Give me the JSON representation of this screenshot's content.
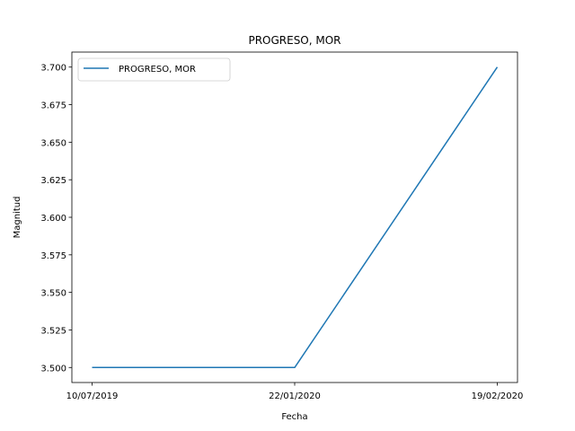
{
  "chart_data": {
    "type": "line",
    "title": "PROGRESO, MOR",
    "xlabel": "Fecha",
    "ylabel": "Magnitud",
    "x": [
      "10/07/2019",
      "22/01/2020",
      "19/02/2020"
    ],
    "series": [
      {
        "name": "PROGRESO, MOR",
        "values": [
          3.5,
          3.5,
          3.7
        ],
        "color": "#1f77b4"
      }
    ],
    "ylim": [
      3.49,
      3.71
    ],
    "yticks": [
      3.5,
      3.525,
      3.55,
      3.575,
      3.6,
      3.625,
      3.65,
      3.675,
      3.7
    ],
    "ytick_labels": [
      "3.500",
      "3.525",
      "3.550",
      "3.575",
      "3.600",
      "3.625",
      "3.650",
      "3.675",
      "3.700"
    ],
    "grid": false,
    "legend_position": "upper-left"
  }
}
